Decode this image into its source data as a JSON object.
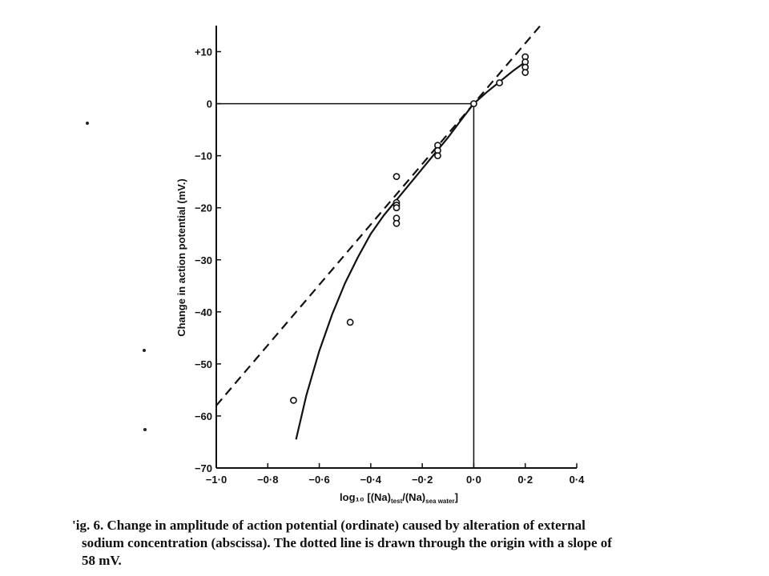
{
  "chart_data": {
    "type": "scatter",
    "ylabel": "Change in action potential (mV.)",
    "xlabel_parts": {
      "main": "log₁₀ [(Na)",
      "sub1": "test",
      "mid": "/(Na)",
      "sub2": "sea water",
      "end": "]"
    },
    "xlim": [
      -1.0,
      0.4
    ],
    "ylim": [
      -70,
      15
    ],
    "x_ticks": [
      -1.0,
      -0.8,
      -0.6,
      -0.4,
      -0.2,
      0.0,
      0.2,
      0.4
    ],
    "x_tick_labels": [
      "−1·0",
      "−0·8",
      "−0·6",
      "−0·4",
      "−0·2",
      "0·0",
      "0·2",
      "0·4"
    ],
    "y_ticks": [
      10,
      0,
      -10,
      -20,
      -30,
      -40,
      -50,
      -60,
      -70
    ],
    "y_tick_labels": [
      "+10",
      "0",
      "−10",
      "−20",
      "−30",
      "−40",
      "−50",
      "−60",
      "−70"
    ],
    "points": [
      {
        "x": -0.7,
        "y": -57
      },
      {
        "x": -0.48,
        "y": -42
      },
      {
        "x": -0.3,
        "y": -14
      },
      {
        "x": -0.3,
        "y": -19
      },
      {
        "x": -0.3,
        "y": -19.5
      },
      {
        "x": -0.3,
        "y": -20
      },
      {
        "x": -0.3,
        "y": -22
      },
      {
        "x": -0.3,
        "y": -23
      },
      {
        "x": -0.14,
        "y": -8
      },
      {
        "x": -0.14,
        "y": -9
      },
      {
        "x": -0.14,
        "y": -10
      },
      {
        "x": 0.0,
        "y": 0
      },
      {
        "x": 0.1,
        "y": 4
      },
      {
        "x": 0.2,
        "y": 9
      },
      {
        "x": 0.2,
        "y": 8
      },
      {
        "x": 0.2,
        "y": 7
      },
      {
        "x": 0.2,
        "y": 6
      }
    ],
    "fitted_curve": {
      "x": [
        -0.69,
        -0.65,
        -0.6,
        -0.55,
        -0.5,
        -0.45,
        -0.4,
        -0.35,
        -0.3,
        -0.25,
        -0.2,
        -0.15,
        -0.1,
        -0.05,
        0.0,
        0.05,
        0.1,
        0.15,
        0.2
      ],
      "y": [
        -64.5,
        -56,
        -47.5,
        -40.5,
        -34.5,
        -29.5,
        -25,
        -21.5,
        -18.5,
        -15.5,
        -12.5,
        -9.5,
        -6.5,
        -3.2,
        0,
        2.2,
        4.2,
        6.2,
        8
      ]
    },
    "dashed_line": {
      "slope": 58,
      "intercept": 0,
      "x_range": [
        -1.0,
        0.26
      ]
    },
    "reference_lines": {
      "y_zero_to_x": 0.0,
      "x_zero_down_to_y": -70
    },
    "grid": false,
    "legend": "none"
  },
  "caption": {
    "line1_prefix": "'ig. 6.",
    "line1": " Change in amplitude of action potential (ordinate) caused by alteration of external",
    "line2": "sodium concentration (abscissa). The dotted line is drawn through the origin with a slope of",
    "line3": "58 mV."
  }
}
